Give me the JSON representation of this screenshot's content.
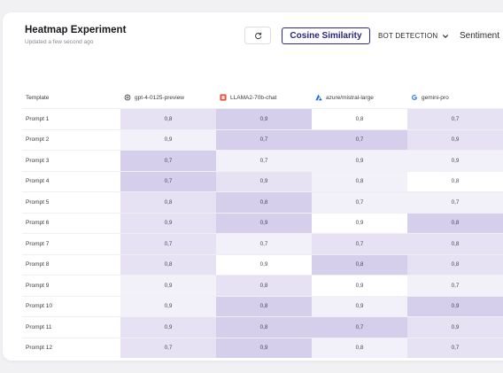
{
  "header": {
    "title": "Heatmap Experiment",
    "subtitle": "Updated a few second ago",
    "metric_label": "Cosine Similarity",
    "detection_label": "BOT DETECTION",
    "sentiment_label": "Sentiment"
  },
  "table": {
    "template_header": "Template",
    "models": [
      {
        "name": "gpt-4-0125-preview",
        "icon": "openai-icon"
      },
      {
        "name": "LLAMA2-70b-chat",
        "icon": "llama-icon"
      },
      {
        "name": "azure/mistral-large",
        "icon": "azure-icon"
      },
      {
        "name": "gemini-pro",
        "icon": "google-icon"
      }
    ],
    "rows": [
      {
        "label": "Prompt 1",
        "values": [
          "0,8",
          "0,9",
          "0,8",
          "0,7"
        ]
      },
      {
        "label": "Prompt 2",
        "values": [
          "0,9",
          "0,7",
          "0,7",
          "0,9"
        ]
      },
      {
        "label": "Prompt 3",
        "values": [
          "0,7",
          "0,7",
          "0,9",
          "0,9"
        ]
      },
      {
        "label": "Prompt 4",
        "values": [
          "0,7",
          "0,9",
          "0,8",
          "0,8"
        ]
      },
      {
        "label": "Prompt 5",
        "values": [
          "0,8",
          "0,8",
          "0,7",
          "0,7"
        ]
      },
      {
        "label": "Prompt 6",
        "values": [
          "0,9",
          "0,9",
          "0,9",
          "0,8"
        ]
      },
      {
        "label": "Prompt 7",
        "values": [
          "0,7",
          "0,7",
          "0,7",
          "0,8"
        ]
      },
      {
        "label": "Prompt 8",
        "values": [
          "0,8",
          "0,9",
          "0,8",
          "0,8"
        ]
      },
      {
        "label": "Prompt 9",
        "values": [
          "0,9",
          "0,8",
          "0,9",
          "0,7"
        ]
      },
      {
        "label": "Prompt 10",
        "values": [
          "0,9",
          "0,8",
          "0,9",
          "0,9"
        ]
      },
      {
        "label": "Prompt 11",
        "values": [
          "0,9",
          "0,8",
          "0,7",
          "0,9"
        ]
      },
      {
        "label": "Prompt 12",
        "values": [
          "0,7",
          "0,9",
          "0,8",
          "0,7"
        ]
      }
    ],
    "cell_shades": [
      [
        "#e6e2f3",
        "#d5cfec",
        "#ffffff",
        "#e6e2f3"
      ],
      [
        "#f2f0f9",
        "#d5cfec",
        "#d5cfec",
        "#e6e2f3"
      ],
      [
        "#d5cfec",
        "#f2f0f9",
        "#f2f0f9",
        "#f2f0f9"
      ],
      [
        "#d5cfec",
        "#e6e2f3",
        "#f2f0f9",
        "#ffffff"
      ],
      [
        "#e6e2f3",
        "#d5cfec",
        "#f2f0f9",
        "#f2f0f9"
      ],
      [
        "#e6e2f3",
        "#d5cfec",
        "#ffffff",
        "#d5cfec"
      ],
      [
        "#e6e2f3",
        "#f2f0f9",
        "#e6e2f3",
        "#e6e2f3"
      ],
      [
        "#e6e2f3",
        "#ffffff",
        "#d5cfec",
        "#e6e2f3"
      ],
      [
        "#f2f0f9",
        "#e6e2f3",
        "#ffffff",
        "#f2f0f9"
      ],
      [
        "#f2f0f9",
        "#d5cfec",
        "#f2f0f9",
        "#d5cfec"
      ],
      [
        "#e6e2f3",
        "#d5cfec",
        "#d5cfec",
        "#e6e2f3"
      ],
      [
        "#e6e2f3",
        "#d5cfec",
        "#f2f0f9",
        "#e6e2f3"
      ]
    ]
  },
  "colors": {
    "accent": "#2e2a8c",
    "llama_icon": "#e8543b",
    "azure_icon": "#1a73e8"
  }
}
